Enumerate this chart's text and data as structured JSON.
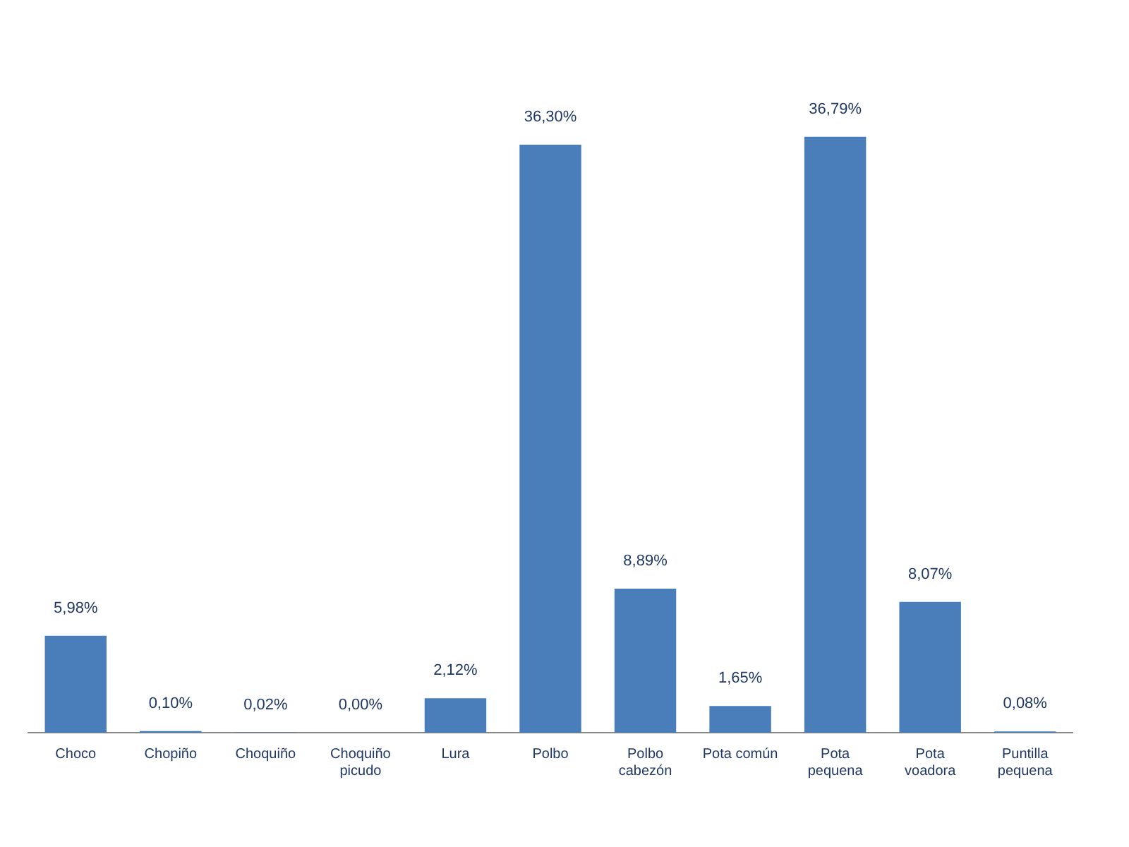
{
  "chart_data": {
    "type": "bar",
    "categories": [
      "Choco",
      "Chopiño",
      "Choquiño",
      "Choquiño picudo",
      "Lura",
      "Polbo",
      "Polbo cabezón",
      "Pota común",
      "Pota pequena",
      "Pota voadora",
      "Puntilla pequena"
    ],
    "values": [
      5.98,
      0.1,
      0.02,
      0.0,
      2.12,
      36.3,
      8.89,
      1.65,
      36.79,
      8.07,
      0.08
    ],
    "value_labels": [
      "5,98%",
      "0,10%",
      "0,02%",
      "0,00%",
      "2,12%",
      "36,30%",
      "8,89%",
      "1,65%",
      "36,79%",
      "8,07%",
      "0,08%"
    ],
    "color": "#4a7ebb",
    "grid": false,
    "legend": false,
    "tick_labels": "x"
  }
}
